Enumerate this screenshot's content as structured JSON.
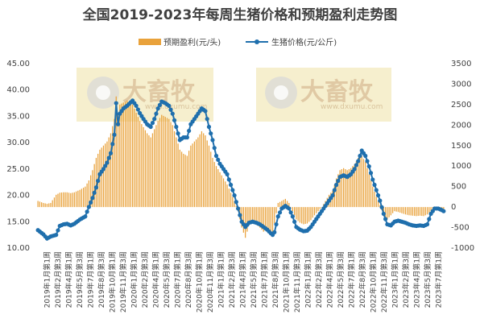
{
  "chart_data": {
    "type": "bar+line",
    "title": "全国2019-2023年每周生猪价格和预期盈利走势图",
    "legend": {
      "placement": "top-center",
      "items": [
        {
          "name": "预期盈利(元/头)",
          "type": "bar",
          "color": "#e9a23b"
        },
        {
          "name": "生猪价格(元/公斤)",
          "type": "line",
          "color": "#1f6fad"
        }
      ]
    },
    "left_axis": {
      "min": 10,
      "max": 45,
      "step": 5,
      "tick_labels": [
        "10.00",
        "15.00",
        "20.00",
        "25.00",
        "30.00",
        "35.00",
        "40.00",
        "45.00"
      ]
    },
    "right_axis": {
      "min": -1000,
      "max": 3500,
      "step": 500,
      "tick_labels": [
        "-1000",
        "-500",
        "0",
        "500",
        "1000",
        "1500",
        "2000",
        "2500",
        "3000",
        "3500"
      ]
    },
    "x_tick_labels": [
      "2019年1月第1周",
      "2019年2月第3周",
      "2019年4月第1周",
      "2019年5月第3周",
      "2019年7月第1周",
      "2019年8月第3周",
      "2019年10月第1周",
      "2019年11月第3周",
      "2020年1月第1周",
      "2020年2月第3周",
      "2020年4月第1周",
      "2020年5月第3周",
      "2020年7月第1周",
      "2020年8月第3周",
      "2020年10月第1周",
      "2020年11月第3周",
      "2021年1月第1周",
      "2021年2月第3周",
      "2021年4月第1周",
      "2021年5月第3周",
      "2021年7月第1周",
      "2021年8月第3周",
      "2021年10月第1周",
      "2021年11月第3周",
      "2022年1月第1周",
      "2022年2月第3周",
      "2022年4月第1周",
      "2022年5月第3周",
      "2022年7月第1周",
      "2022年8月第3周",
      "2022年10月第1周",
      "2022年11月第3周",
      "2023年1月第1周",
      "2023年2月第3周",
      "2023年4月第1周",
      "2023年5月第3周",
      "2023年7月第1周"
    ],
    "series": [
      {
        "name": "生猪价格(元/公斤)",
        "type": "line",
        "axis": "left",
        "keyframes": [
          [
            0,
            13.4
          ],
          [
            3,
            12.6
          ],
          [
            5,
            11.8
          ],
          [
            7,
            12.2
          ],
          [
            10,
            12.5
          ],
          [
            12,
            14.2
          ],
          [
            14,
            14.5
          ],
          [
            16,
            14.6
          ],
          [
            18,
            14.3
          ],
          [
            20,
            14.6
          ],
          [
            23,
            15.4
          ],
          [
            26,
            16.0
          ],
          [
            28,
            17.8
          ],
          [
            30,
            19.5
          ],
          [
            32,
            21.5
          ],
          [
            34,
            24.0
          ],
          [
            36,
            25.0
          ],
          [
            38,
            26.2
          ],
          [
            40,
            28.0
          ],
          [
            42,
            31.5
          ],
          [
            43,
            37.5
          ],
          [
            44,
            33.5
          ],
          [
            45,
            35.5
          ],
          [
            47,
            36.5
          ],
          [
            49,
            37.0
          ],
          [
            52,
            38.0
          ],
          [
            54,
            37.0
          ],
          [
            56,
            35.6
          ],
          [
            58,
            34.5
          ],
          [
            60,
            33.5
          ],
          [
            62,
            33.0
          ],
          [
            64,
            34.5
          ],
          [
            66,
            36.5
          ],
          [
            68,
            37.8
          ],
          [
            70,
            37.5
          ],
          [
            72,
            37.0
          ],
          [
            74,
            35.5
          ],
          [
            76,
            33.0
          ],
          [
            78,
            30.5
          ],
          [
            80,
            31.0
          ],
          [
            82,
            31.0
          ],
          [
            84,
            33.5
          ],
          [
            86,
            34.5
          ],
          [
            88,
            35.5
          ],
          [
            90,
            36.5
          ],
          [
            92,
            36.0
          ],
          [
            94,
            33.0
          ],
          [
            96,
            30.5
          ],
          [
            98,
            27.5
          ],
          [
            100,
            26.0
          ],
          [
            102,
            25.0
          ],
          [
            104,
            24.0
          ],
          [
            106,
            22.0
          ],
          [
            108,
            20.0
          ],
          [
            110,
            17.5
          ],
          [
            112,
            15.0
          ],
          [
            114,
            14.0
          ],
          [
            116,
            14.8
          ],
          [
            118,
            15.0
          ],
          [
            120,
            14.8
          ],
          [
            122,
            14.5
          ],
          [
            124,
            14.0
          ],
          [
            126,
            13.5
          ],
          [
            128,
            12.8
          ],
          [
            129,
            12.5
          ],
          [
            130,
            13.0
          ],
          [
            132,
            16.0
          ],
          [
            134,
            17.5
          ],
          [
            136,
            18.0
          ],
          [
            138,
            17.5
          ],
          [
            140,
            16.0
          ],
          [
            142,
            14.0
          ],
          [
            144,
            13.5
          ],
          [
            146,
            13.2
          ],
          [
            148,
            13.3
          ],
          [
            150,
            14.0
          ],
          [
            152,
            15.0
          ],
          [
            154,
            16.0
          ],
          [
            156,
            17.0
          ],
          [
            158,
            18.0
          ],
          [
            160,
            19.0
          ],
          [
            162,
            20.0
          ],
          [
            164,
            22.0
          ],
          [
            166,
            23.5
          ],
          [
            168,
            23.8
          ],
          [
            170,
            23.5
          ],
          [
            172,
            24.0
          ],
          [
            174,
            25.0
          ],
          [
            176,
            26.5
          ],
          [
            178,
            28.5
          ],
          [
            180,
            27.5
          ],
          [
            182,
            25.5
          ],
          [
            184,
            23.0
          ],
          [
            186,
            21.0
          ],
          [
            188,
            19.0
          ],
          [
            190,
            16.5
          ],
          [
            192,
            14.5
          ],
          [
            194,
            14.3
          ],
          [
            196,
            15.0
          ],
          [
            198,
            15.2
          ],
          [
            200,
            15.0
          ],
          [
            202,
            14.8
          ],
          [
            204,
            14.5
          ],
          [
            206,
            14.3
          ],
          [
            208,
            14.2
          ],
          [
            210,
            14.3
          ],
          [
            212,
            14.2
          ],
          [
            214,
            14.5
          ],
          [
            216,
            16.5
          ],
          [
            218,
            17.5
          ],
          [
            220,
            17.5
          ],
          [
            222,
            17.2
          ],
          [
            223,
            17.0
          ]
        ]
      },
      {
        "name": "预期盈利(元/头)",
        "type": "bar",
        "axis": "right",
        "keyframes": [
          [
            0,
            150
          ],
          [
            3,
            100
          ],
          [
            5,
            80
          ],
          [
            7,
            100
          ],
          [
            10,
            300
          ],
          [
            12,
            350
          ],
          [
            14,
            360
          ],
          [
            16,
            360
          ],
          [
            18,
            340
          ],
          [
            20,
            360
          ],
          [
            23,
            420
          ],
          [
            26,
            500
          ],
          [
            28,
            650
          ],
          [
            30,
            900
          ],
          [
            32,
            1200
          ],
          [
            34,
            1400
          ],
          [
            36,
            1500
          ],
          [
            38,
            1600
          ],
          [
            40,
            1800
          ],
          [
            42,
            2150
          ],
          [
            43,
            2700
          ],
          [
            44,
            2300
          ],
          [
            45,
            2500
          ],
          [
            47,
            2550
          ],
          [
            49,
            2600
          ],
          [
            52,
            2500
          ],
          [
            54,
            2300
          ],
          [
            56,
            2100
          ],
          [
            58,
            1950
          ],
          [
            60,
            1800
          ],
          [
            62,
            1700
          ],
          [
            64,
            1900
          ],
          [
            66,
            2100
          ],
          [
            68,
            2250
          ],
          [
            70,
            2200
          ],
          [
            72,
            2150
          ],
          [
            74,
            2000
          ],
          [
            76,
            1700
          ],
          [
            78,
            1400
          ],
          [
            80,
            1300
          ],
          [
            82,
            1250
          ],
          [
            84,
            1500
          ],
          [
            86,
            1600
          ],
          [
            88,
            1700
          ],
          [
            90,
            1850
          ],
          [
            92,
            1750
          ],
          [
            94,
            1500
          ],
          [
            96,
            1200
          ],
          [
            98,
            1000
          ],
          [
            100,
            850
          ],
          [
            102,
            700
          ],
          [
            104,
            550
          ],
          [
            106,
            350
          ],
          [
            108,
            150
          ],
          [
            110,
            -100
          ],
          [
            112,
            -500
          ],
          [
            114,
            -750
          ],
          [
            116,
            -450
          ],
          [
            118,
            -350
          ],
          [
            120,
            -420
          ],
          [
            122,
            -500
          ],
          [
            124,
            -600
          ],
          [
            126,
            -550
          ],
          [
            128,
            -650
          ],
          [
            129,
            -700
          ],
          [
            130,
            -400
          ],
          [
            132,
            100
          ],
          [
            134,
            150
          ],
          [
            136,
            200
          ],
          [
            138,
            100
          ],
          [
            140,
            -100
          ],
          [
            142,
            -300
          ],
          [
            144,
            -380
          ],
          [
            146,
            -420
          ],
          [
            148,
            -400
          ],
          [
            150,
            -320
          ],
          [
            152,
            -200
          ],
          [
            154,
            -100
          ],
          [
            156,
            0
          ],
          [
            158,
            150
          ],
          [
            160,
            300
          ],
          [
            162,
            400
          ],
          [
            164,
            700
          ],
          [
            166,
            900
          ],
          [
            168,
            950
          ],
          [
            170,
            900
          ],
          [
            172,
            950
          ],
          [
            174,
            1050
          ],
          [
            176,
            1200
          ],
          [
            178,
            1250
          ],
          [
            180,
            1100
          ],
          [
            182,
            800
          ],
          [
            184,
            500
          ],
          [
            186,
            250
          ],
          [
            188,
            50
          ],
          [
            190,
            -200
          ],
          [
            192,
            -300
          ],
          [
            194,
            -200
          ],
          [
            196,
            -100
          ],
          [
            198,
            -120
          ],
          [
            200,
            -150
          ],
          [
            202,
            -180
          ],
          [
            204,
            -200
          ],
          [
            206,
            -210
          ],
          [
            208,
            -220
          ],
          [
            210,
            -210
          ],
          [
            212,
            -220
          ],
          [
            214,
            -180
          ],
          [
            216,
            -100
          ],
          [
            218,
            -50
          ],
          [
            220,
            -60
          ],
          [
            222,
            -80
          ],
          [
            223,
            -100
          ]
        ]
      }
    ],
    "total_points": 224,
    "grid": false
  },
  "watermarks": [
    {
      "logo_text": "大畜牧",
      "sub_text": "www.dxumu.com"
    },
    {
      "logo_text": "大畜牧",
      "sub_text": "www.dxumu.com"
    }
  ]
}
